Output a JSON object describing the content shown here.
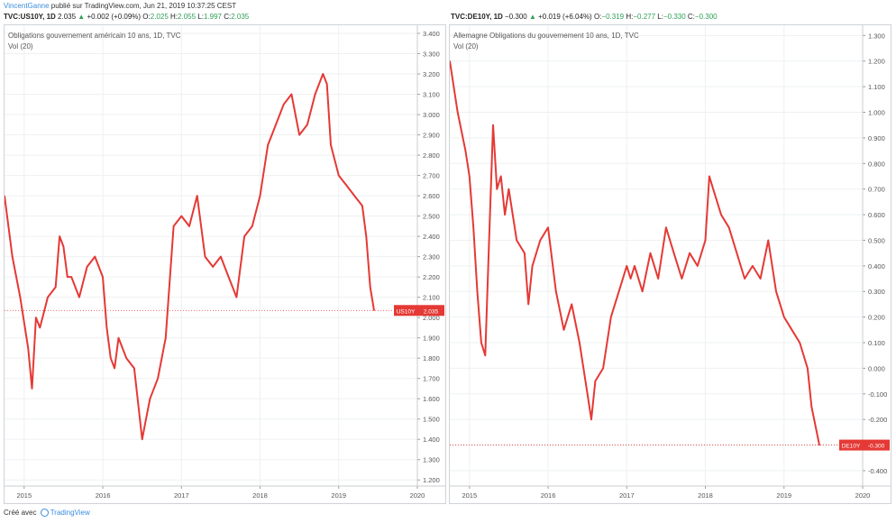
{
  "header": {
    "author": "VincentGanne",
    "published_text": "publié sur TradingView.com, Jun 21, 2019 10:37:25 CEST"
  },
  "tickers": [
    {
      "symbol": "TVC:US10Y, 1D",
      "value": "2.035",
      "arrow": "▲",
      "change": "+0.002 (+0.09%)",
      "o_label": "O:",
      "o_val": "2.025",
      "h_label": "H:",
      "h_val": "2.055",
      "l_label": "L:",
      "l_val": "1.997",
      "c_label": "C:",
      "c_val": "2.035"
    },
    {
      "symbol": "TVC:DE10Y, 1D",
      "value": "−0.300",
      "arrow": "▲",
      "change": "+0.019 (+6.04%)",
      "o_label": "O:",
      "o_val": "−0.319",
      "h_label": "H:",
      "h_val": "−0.277",
      "l_label": "L:",
      "l_val": "−0.330",
      "c_label": "C:",
      "c_val": "−0.300"
    }
  ],
  "footer": {
    "created_with": "Créé avec",
    "brand": "TradingView"
  },
  "colors": {
    "line": "#e53935",
    "up": "#2e9f56",
    "grid": "#eef0f2",
    "axis_text": "#555555",
    "link": "#3a8dde"
  },
  "chart_data": [
    {
      "type": "line",
      "title": "Obligations gouvernement américain 10 ans, 1D, TVC",
      "subtitle": "Vol (20)",
      "series": [
        {
          "name": "US10Y",
          "x": [
            2014.75,
            2014.85,
            2014.95,
            2015.05,
            2015.1,
            2015.15,
            2015.2,
            2015.3,
            2015.4,
            2015.45,
            2015.5,
            2015.55,
            2015.6,
            2015.7,
            2015.8,
            2015.9,
            2016.0,
            2016.05,
            2016.1,
            2016.15,
            2016.2,
            2016.3,
            2016.4,
            2016.5,
            2016.55,
            2016.6,
            2016.7,
            2016.8,
            2016.9,
            2017.0,
            2017.1,
            2017.2,
            2017.3,
            2017.4,
            2017.5,
            2017.6,
            2017.7,
            2017.8,
            2017.9,
            2018.0,
            2018.1,
            2018.15,
            2018.2,
            2018.3,
            2018.4,
            2018.5,
            2018.6,
            2018.7,
            2018.8,
            2018.85,
            2018.9,
            2019.0,
            2019.1,
            2019.2,
            2019.3,
            2019.35,
            2019.4,
            2019.45
          ],
          "y": [
            2.6,
            2.3,
            2.1,
            1.85,
            1.65,
            2.0,
            1.95,
            2.1,
            2.15,
            2.4,
            2.35,
            2.2,
            2.2,
            2.1,
            2.25,
            2.3,
            2.2,
            1.95,
            1.8,
            1.75,
            1.9,
            1.8,
            1.75,
            1.4,
            1.5,
            1.6,
            1.7,
            1.9,
            2.45,
            2.5,
            2.45,
            2.6,
            2.3,
            2.25,
            2.3,
            2.2,
            2.1,
            2.4,
            2.45,
            2.6,
            2.85,
            2.9,
            2.95,
            3.05,
            3.1,
            2.9,
            2.95,
            3.1,
            3.2,
            3.15,
            2.85,
            2.7,
            2.65,
            2.6,
            2.55,
            2.4,
            2.15,
            2.035
          ]
        }
      ],
      "x_ticks": [
        "2015",
        "2016",
        "2017",
        "2018",
        "2019",
        "2020"
      ],
      "y_ticks": [
        "3.400",
        "3.300",
        "3.200",
        "3.100",
        "3.000",
        "2.900",
        "2.800",
        "2.700",
        "2.600",
        "2.500",
        "2.400",
        "2.300",
        "2.200",
        "2.100",
        "2.000",
        "1.900",
        "1.800",
        "1.700",
        "1.600",
        "1.500",
        "1.400",
        "1.300",
        "1.200"
      ],
      "xlim": [
        2014.75,
        2020.0
      ],
      "ylim": [
        1.17,
        3.44
      ],
      "last_value": 2.035,
      "last_label": "US10Y",
      "last_value_label": "2.035"
    },
    {
      "type": "line",
      "title": "Allemagne Obligations du gouvernement 10 ans, 1D, TVC",
      "subtitle": "Vol (20)",
      "series": [
        {
          "name": "DE10Y",
          "x": [
            2014.75,
            2014.85,
            2014.95,
            2015.0,
            2015.05,
            2015.1,
            2015.15,
            2015.2,
            2015.25,
            2015.3,
            2015.35,
            2015.4,
            2015.45,
            2015.5,
            2015.6,
            2015.7,
            2015.75,
            2015.8,
            2015.9,
            2016.0,
            2016.1,
            2016.2,
            2016.3,
            2016.4,
            2016.5,
            2016.55,
            2016.6,
            2016.7,
            2016.8,
            2016.9,
            2017.0,
            2017.05,
            2017.1,
            2017.2,
            2017.3,
            2017.4,
            2017.5,
            2017.6,
            2017.7,
            2017.8,
            2017.9,
            2018.0,
            2018.05,
            2018.1,
            2018.2,
            2018.3,
            2018.4,
            2018.5,
            2018.6,
            2018.7,
            2018.8,
            2018.9,
            2019.0,
            2019.1,
            2019.2,
            2019.3,
            2019.35,
            2019.45
          ],
          "y": [
            1.2,
            1.0,
            0.85,
            0.75,
            0.55,
            0.3,
            0.1,
            0.05,
            0.5,
            0.95,
            0.7,
            0.75,
            0.6,
            0.7,
            0.5,
            0.45,
            0.25,
            0.4,
            0.5,
            0.55,
            0.3,
            0.15,
            0.25,
            0.1,
            -0.1,
            -0.2,
            -0.05,
            0.0,
            0.2,
            0.3,
            0.4,
            0.35,
            0.4,
            0.3,
            0.45,
            0.35,
            0.55,
            0.45,
            0.35,
            0.45,
            0.4,
            0.5,
            0.75,
            0.7,
            0.6,
            0.55,
            0.45,
            0.35,
            0.4,
            0.35,
            0.5,
            0.3,
            0.2,
            0.15,
            0.1,
            0.0,
            -0.15,
            -0.3
          ]
        }
      ],
      "x_ticks": [
        "2015",
        "2016",
        "2017",
        "2018",
        "2019",
        "2020"
      ],
      "y_ticks": [
        "1.300",
        "1.200",
        "1.100",
        "1.000",
        "0.900",
        "0.800",
        "0.700",
        "0.600",
        "0.500",
        "0.400",
        "0.300",
        "0.200",
        "0.100",
        "0.000",
        "-0.100",
        "-0.200",
        "-0.300",
        "-0.400"
      ],
      "xlim": [
        2014.75,
        2020.0
      ],
      "ylim": [
        -0.46,
        1.34
      ],
      "last_value": -0.3,
      "last_label": "DE10Y",
      "last_value_label": "-0.300"
    }
  ]
}
